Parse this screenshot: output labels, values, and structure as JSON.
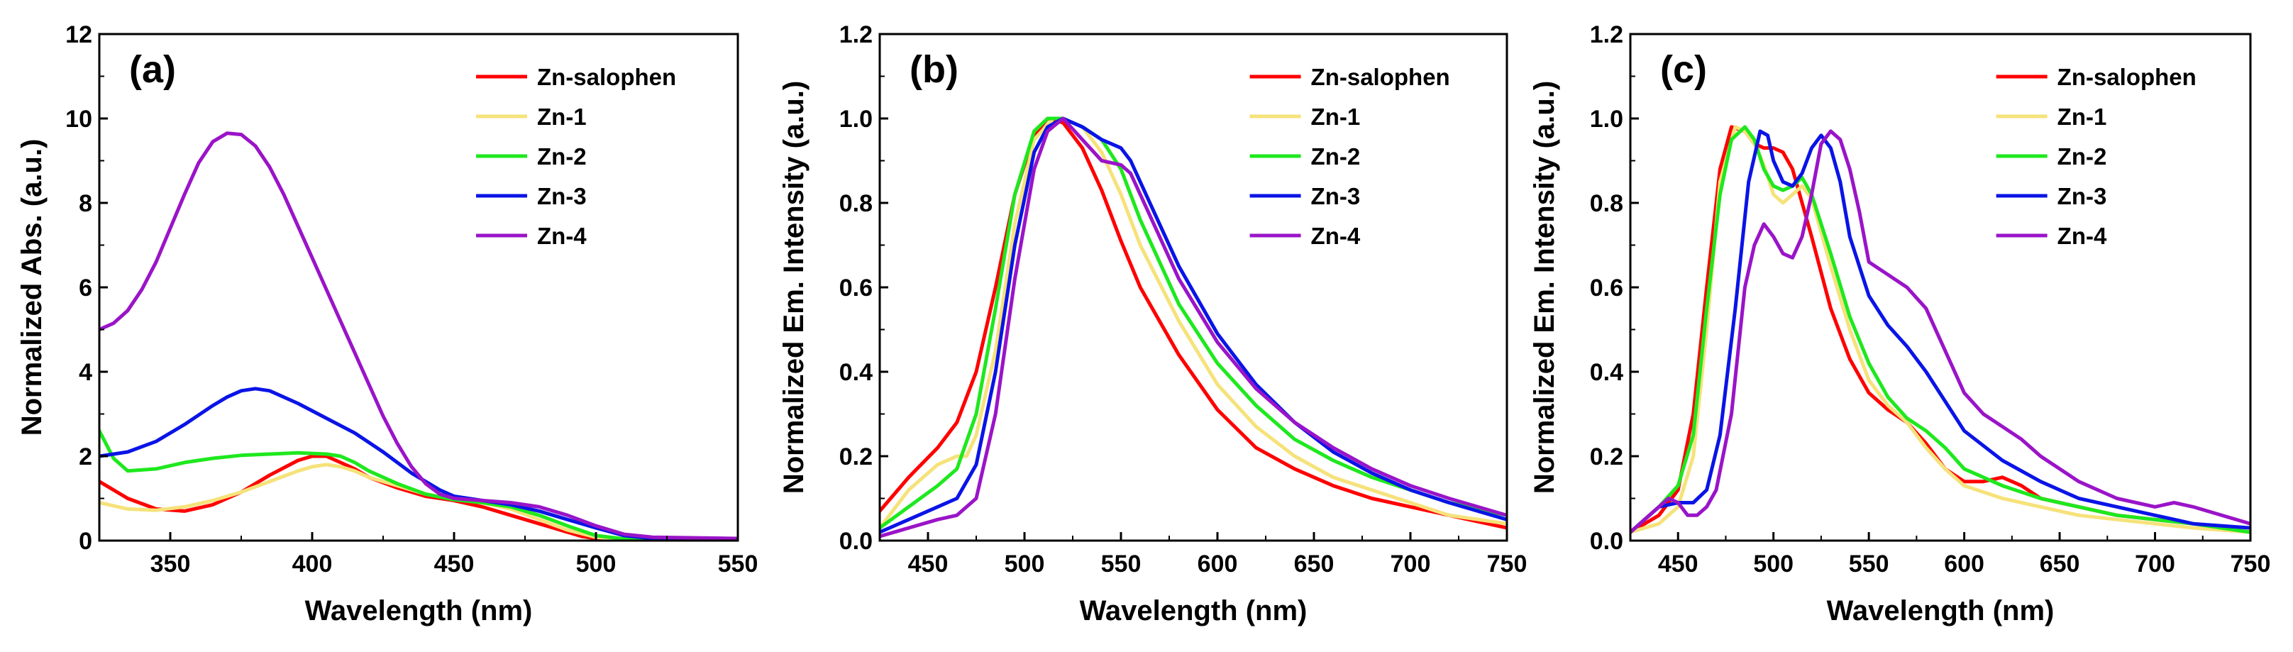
{
  "series_styles": [
    {
      "name": "Zn-salophen",
      "color": "#ff0000"
    },
    {
      "name": "Zn-1",
      "color": "#f5e27a"
    },
    {
      "name": "Zn-2",
      "color": "#1ee81e"
    },
    {
      "name": "Zn-3",
      "color": "#0a14e6"
    },
    {
      "name": "Zn-4",
      "color": "#9a14c8"
    }
  ],
  "chart_data": [
    {
      "type": "line",
      "panel_label": "(a)",
      "xlabel": "Wavelength (nm)",
      "ylabel": "Normalized Abs. (a.u.)",
      "xlim": [
        325,
        550
      ],
      "ylim": [
        0,
        12
      ],
      "xticks": [
        350,
        400,
        450,
        500,
        550
      ],
      "yticks": [
        0,
        2,
        4,
        6,
        8,
        10,
        12
      ],
      "ytick_decimals": 0,
      "grid": false,
      "legend_position": "top-right",
      "series": [
        {
          "name": "Zn-salophen",
          "x": [
            325,
            335,
            345,
            355,
            365,
            375,
            385,
            395,
            400,
            405,
            410,
            415,
            420,
            430,
            440,
            450,
            460,
            470,
            480,
            490,
            495,
            500,
            510,
            520,
            550
          ],
          "y": [
            1.4,
            1.0,
            0.75,
            0.7,
            0.85,
            1.15,
            1.55,
            1.9,
            2.0,
            2.0,
            1.85,
            1.7,
            1.5,
            1.25,
            1.05,
            0.95,
            0.8,
            0.6,
            0.4,
            0.2,
            0.1,
            0.05,
            0.02,
            0.01,
            0.0
          ]
        },
        {
          "name": "Zn-1",
          "x": [
            325,
            335,
            345,
            355,
            365,
            375,
            385,
            395,
            400,
            405,
            410,
            415,
            420,
            430,
            440,
            450,
            460,
            470,
            480,
            490,
            500,
            510,
            520,
            550
          ],
          "y": [
            0.9,
            0.75,
            0.72,
            0.8,
            0.95,
            1.15,
            1.4,
            1.65,
            1.75,
            1.8,
            1.75,
            1.65,
            1.5,
            1.3,
            1.1,
            0.98,
            0.9,
            0.75,
            0.5,
            0.25,
            0.08,
            0.03,
            0.01,
            0.0
          ]
        },
        {
          "name": "Zn-2",
          "x": [
            325,
            330,
            335,
            345,
            355,
            365,
            375,
            385,
            395,
            405,
            410,
            415,
            420,
            430,
            440,
            450,
            460,
            470,
            480,
            490,
            500,
            510,
            520,
            550
          ],
          "y": [
            2.6,
            1.95,
            1.65,
            1.7,
            1.85,
            1.95,
            2.02,
            2.05,
            2.08,
            2.05,
            2.0,
            1.85,
            1.65,
            1.35,
            1.1,
            0.97,
            0.9,
            0.8,
            0.6,
            0.35,
            0.12,
            0.04,
            0.02,
            0.0
          ]
        },
        {
          "name": "Zn-3",
          "x": [
            325,
            335,
            345,
            355,
            365,
            370,
            375,
            380,
            385,
            395,
            405,
            415,
            425,
            435,
            445,
            450,
            460,
            470,
            480,
            490,
            500,
            510,
            520,
            550
          ],
          "y": [
            2.0,
            2.1,
            2.35,
            2.75,
            3.2,
            3.4,
            3.55,
            3.6,
            3.55,
            3.25,
            2.9,
            2.55,
            2.1,
            1.6,
            1.2,
            1.05,
            0.95,
            0.85,
            0.7,
            0.5,
            0.3,
            0.12,
            0.05,
            0.01
          ]
        },
        {
          "name": "Zn-4",
          "x": [
            325,
            330,
            335,
            340,
            345,
            350,
            355,
            360,
            365,
            370,
            375,
            380,
            385,
            390,
            395,
            400,
            405,
            410,
            415,
            420,
            425,
            430,
            435,
            440,
            445,
            450,
            460,
            470,
            480,
            490,
            500,
            510,
            520,
            550
          ],
          "y": [
            5.0,
            5.15,
            5.45,
            5.95,
            6.6,
            7.4,
            8.2,
            8.95,
            9.45,
            9.65,
            9.62,
            9.35,
            8.85,
            8.2,
            7.45,
            6.7,
            5.95,
            5.2,
            4.45,
            3.7,
            2.95,
            2.3,
            1.75,
            1.35,
            1.1,
            1.0,
            0.95,
            0.9,
            0.8,
            0.6,
            0.35,
            0.15,
            0.08,
            0.05
          ]
        }
      ]
    },
    {
      "type": "line",
      "panel_label": "(b)",
      "xlabel": "Wavelength (nm)",
      "ylabel": "Normalized Em. Intensity (a.u.)",
      "xlim": [
        425,
        750
      ],
      "ylim": [
        0,
        1.2
      ],
      "xticks": [
        450,
        500,
        550,
        600,
        650,
        700,
        750
      ],
      "yticks": [
        0.0,
        0.2,
        0.4,
        0.6,
        0.8,
        1.0,
        1.2
      ],
      "ytick_decimals": 1,
      "grid": false,
      "legend_position": "top-right",
      "series": [
        {
          "name": "Zn-salophen",
          "x": [
            425,
            440,
            455,
            465,
            475,
            485,
            495,
            505,
            512,
            520,
            530,
            540,
            550,
            560,
            580,
            600,
            620,
            640,
            660,
            680,
            700,
            720,
            750
          ],
          "y": [
            0.07,
            0.15,
            0.22,
            0.28,
            0.4,
            0.6,
            0.82,
            0.96,
            1.0,
            0.99,
            0.93,
            0.83,
            0.71,
            0.6,
            0.44,
            0.31,
            0.22,
            0.17,
            0.13,
            0.1,
            0.08,
            0.06,
            0.03
          ]
        },
        {
          "name": "Zn-1",
          "x": [
            425,
            440,
            455,
            465,
            470,
            475,
            485,
            495,
            505,
            515,
            520,
            530,
            540,
            550,
            560,
            580,
            600,
            620,
            640,
            660,
            680,
            700,
            720,
            750
          ],
          "y": [
            0.03,
            0.12,
            0.18,
            0.2,
            0.2,
            0.25,
            0.45,
            0.75,
            0.95,
            1.0,
            1.0,
            0.98,
            0.92,
            0.82,
            0.7,
            0.52,
            0.37,
            0.27,
            0.2,
            0.15,
            0.12,
            0.09,
            0.06,
            0.04
          ]
        },
        {
          "name": "Zn-2",
          "x": [
            425,
            440,
            455,
            465,
            475,
            485,
            495,
            505,
            512,
            520,
            530,
            540,
            550,
            560,
            580,
            600,
            620,
            640,
            660,
            680,
            700,
            720,
            750
          ],
          "y": [
            0.03,
            0.08,
            0.13,
            0.17,
            0.3,
            0.55,
            0.82,
            0.97,
            1.0,
            1.0,
            0.98,
            0.95,
            0.88,
            0.76,
            0.56,
            0.42,
            0.32,
            0.24,
            0.19,
            0.15,
            0.12,
            0.09,
            0.06
          ]
        },
        {
          "name": "Zn-3",
          "x": [
            425,
            440,
            455,
            465,
            475,
            485,
            495,
            505,
            512,
            520,
            530,
            540,
            550,
            555,
            560,
            570,
            580,
            600,
            620,
            640,
            660,
            680,
            700,
            720,
            750
          ],
          "y": [
            0.02,
            0.05,
            0.08,
            0.1,
            0.18,
            0.4,
            0.7,
            0.92,
            0.98,
            1.0,
            0.98,
            0.95,
            0.93,
            0.9,
            0.85,
            0.75,
            0.65,
            0.49,
            0.37,
            0.28,
            0.21,
            0.16,
            0.12,
            0.09,
            0.05
          ]
        },
        {
          "name": "Zn-4",
          "x": [
            425,
            440,
            455,
            465,
            475,
            485,
            495,
            505,
            512,
            520,
            530,
            540,
            550,
            555,
            560,
            570,
            580,
            600,
            620,
            640,
            660,
            680,
            700,
            720,
            750
          ],
          "y": [
            0.01,
            0.03,
            0.05,
            0.06,
            0.1,
            0.3,
            0.62,
            0.88,
            0.97,
            1.0,
            0.95,
            0.9,
            0.89,
            0.87,
            0.82,
            0.72,
            0.62,
            0.47,
            0.36,
            0.28,
            0.22,
            0.17,
            0.13,
            0.1,
            0.06
          ]
        }
      ]
    },
    {
      "type": "line",
      "panel_label": "(c)",
      "xlabel": "Wavelength (nm)",
      "ylabel": "Normalized Em. Intensity (a.u.)",
      "xlim": [
        425,
        750
      ],
      "ylim": [
        0,
        1.2
      ],
      "xticks": [
        450,
        500,
        550,
        600,
        650,
        700,
        750
      ],
      "yticks": [
        0.0,
        0.2,
        0.4,
        0.6,
        0.8,
        1.0,
        1.2
      ],
      "ytick_decimals": 1,
      "grid": false,
      "legend_position": "top-right",
      "series": [
        {
          "name": "Zn-salophen",
          "x": [
            425,
            440,
            450,
            458,
            465,
            472,
            478,
            485,
            490,
            495,
            500,
            505,
            510,
            520,
            530,
            540,
            550,
            560,
            570,
            580,
            590,
            600,
            610,
            620,
            630,
            640,
            660,
            680,
            700,
            720,
            750
          ],
          "y": [
            0.02,
            0.06,
            0.12,
            0.3,
            0.6,
            0.88,
            0.98,
            0.97,
            0.94,
            0.93,
            0.93,
            0.92,
            0.88,
            0.72,
            0.55,
            0.43,
            0.35,
            0.31,
            0.28,
            0.23,
            0.17,
            0.14,
            0.14,
            0.15,
            0.13,
            0.1,
            0.08,
            0.06,
            0.05,
            0.04,
            0.02
          ]
        },
        {
          "name": "Zn-1",
          "x": [
            425,
            440,
            450,
            458,
            465,
            472,
            480,
            485,
            490,
            495,
            500,
            505,
            510,
            515,
            520,
            530,
            540,
            550,
            560,
            570,
            580,
            590,
            600,
            620,
            640,
            660,
            680,
            700,
            720,
            750
          ],
          "y": [
            0.02,
            0.04,
            0.08,
            0.2,
            0.5,
            0.85,
            0.98,
            0.97,
            0.94,
            0.89,
            0.82,
            0.8,
            0.82,
            0.84,
            0.81,
            0.65,
            0.5,
            0.38,
            0.32,
            0.28,
            0.22,
            0.17,
            0.13,
            0.1,
            0.08,
            0.06,
            0.05,
            0.04,
            0.03,
            0.02
          ]
        },
        {
          "name": "Zn-2",
          "x": [
            425,
            440,
            450,
            458,
            465,
            472,
            478,
            485,
            490,
            495,
            500,
            505,
            510,
            515,
            520,
            530,
            540,
            550,
            560,
            570,
            580,
            590,
            600,
            620,
            640,
            660,
            680,
            700,
            720,
            750
          ],
          "y": [
            0.02,
            0.08,
            0.13,
            0.25,
            0.55,
            0.82,
            0.95,
            0.98,
            0.95,
            0.88,
            0.84,
            0.83,
            0.84,
            0.86,
            0.82,
            0.68,
            0.53,
            0.42,
            0.34,
            0.29,
            0.26,
            0.22,
            0.17,
            0.13,
            0.1,
            0.08,
            0.06,
            0.05,
            0.04,
            0.02
          ]
        },
        {
          "name": "Zn-3",
          "x": [
            425,
            440,
            450,
            458,
            465,
            472,
            480,
            487,
            493,
            497,
            500,
            505,
            510,
            515,
            520,
            525,
            530,
            535,
            540,
            550,
            560,
            570,
            580,
            590,
            600,
            620,
            640,
            660,
            680,
            700,
            720,
            750
          ],
          "y": [
            0.02,
            0.08,
            0.09,
            0.09,
            0.12,
            0.25,
            0.55,
            0.85,
            0.97,
            0.96,
            0.9,
            0.85,
            0.84,
            0.87,
            0.93,
            0.96,
            0.93,
            0.85,
            0.72,
            0.58,
            0.51,
            0.46,
            0.4,
            0.33,
            0.26,
            0.19,
            0.14,
            0.1,
            0.08,
            0.06,
            0.04,
            0.03
          ]
        },
        {
          "name": "Zn-4",
          "x": [
            425,
            440,
            445,
            450,
            455,
            460,
            465,
            470,
            478,
            485,
            490,
            495,
            500,
            505,
            510,
            515,
            520,
            525,
            530,
            535,
            540,
            545,
            550,
            560,
            570,
            580,
            590,
            600,
            610,
            620,
            630,
            640,
            660,
            680,
            700,
            710,
            720,
            750
          ],
          "y": [
            0.02,
            0.08,
            0.1,
            0.09,
            0.06,
            0.06,
            0.08,
            0.12,
            0.3,
            0.6,
            0.7,
            0.75,
            0.72,
            0.68,
            0.67,
            0.72,
            0.82,
            0.94,
            0.97,
            0.95,
            0.88,
            0.78,
            0.66,
            0.63,
            0.6,
            0.55,
            0.45,
            0.35,
            0.3,
            0.27,
            0.24,
            0.2,
            0.14,
            0.1,
            0.08,
            0.09,
            0.08,
            0.04
          ]
        }
      ]
    }
  ]
}
